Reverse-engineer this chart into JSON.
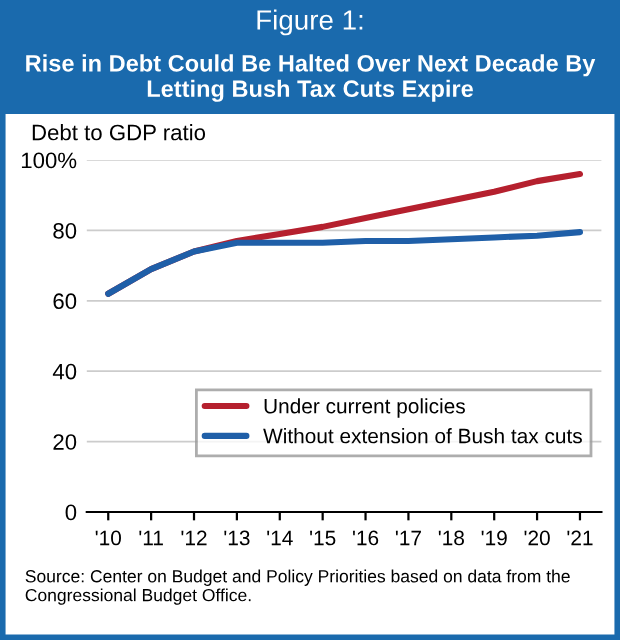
{
  "chart_data": {
    "type": "line",
    "title": "Figure 1:",
    "subtitle": "Rise in Debt Could Be Halted Over Next Decade By Letting Bush Tax Cuts Expire",
    "ylabel": "Debt to GDP ratio",
    "categories": [
      "'10",
      "'11",
      "'12",
      "'13",
      "'14",
      "'15",
      "'16",
      "'17",
      "'18",
      "'19",
      "'20",
      "'21"
    ],
    "series": [
      {
        "name": "Under current policies",
        "color": "#b5202e",
        "values": [
          62,
          69,
          74,
          77,
          79,
          81,
          83.5,
          86,
          88.5,
          91,
          94,
          96
        ]
      },
      {
        "name": "Without extension of Bush tax cuts",
        "color": "#1f5fa8",
        "values": [
          62,
          69,
          74,
          76.5,
          76.5,
          76.5,
          77,
          77,
          77.5,
          78,
          78.5,
          79.5
        ]
      }
    ],
    "ylim": [
      0,
      100
    ],
    "yticks": [
      0,
      20,
      40,
      60,
      80,
      {
        "value": 100,
        "label": "100%"
      }
    ],
    "grid": "y",
    "legend": "lower right",
    "marker": "none",
    "line_style": "solid",
    "annotations": [
      "Source: Center on Budget and Policy Priorities based on data from the Congressional Budget Office."
    ]
  }
}
